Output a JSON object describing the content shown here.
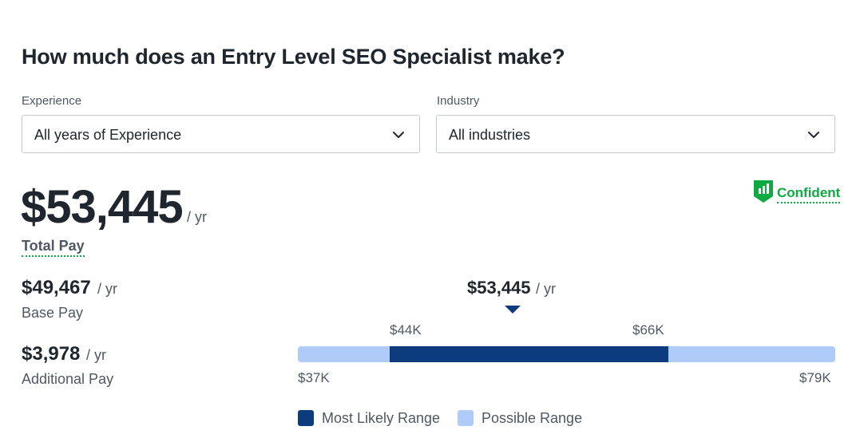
{
  "header": {
    "title": "How much does an Entry Level SEO Specialist make?"
  },
  "filters": {
    "experience": {
      "label": "Experience",
      "value": "All years of Experience",
      "icon": "chevron-down-icon"
    },
    "industry": {
      "label": "Industry",
      "value": "All industries",
      "icon": "chevron-down-icon"
    }
  },
  "total_pay": {
    "amount": "$53,445",
    "unit": "/ yr",
    "label": "Total Pay"
  },
  "confidence": {
    "label": "Confident",
    "icon": "bar-chart-shield-icon",
    "color": "#0caa41"
  },
  "base_pay": {
    "amount": "$49,467",
    "unit": "/ yr",
    "label": "Base Pay"
  },
  "additional_pay": {
    "amount": "$3,978",
    "unit": "/ yr",
    "label": "Additional Pay"
  },
  "range_chart": {
    "marker": {
      "amount": "$53,445",
      "unit": "/ yr",
      "value": 53445
    },
    "likely_low_label": "$44K",
    "likely_high_label": "$66K",
    "min_label": "$37K",
    "max_label": "$79K",
    "min": 37000,
    "max": 79000,
    "likely_low": 44000,
    "likely_high": 66000,
    "colors": {
      "likely": "#0d3c7e",
      "possible": "#aecbfa"
    }
  },
  "legend": {
    "likely_label": "Most Likely Range",
    "possible_label": "Possible Range"
  }
}
